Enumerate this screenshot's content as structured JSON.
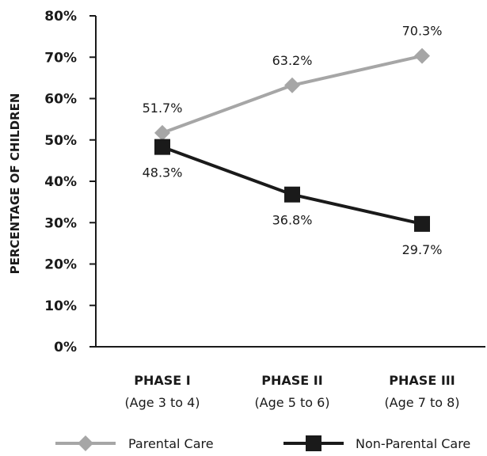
{
  "chart_data": {
    "type": "line",
    "title": "",
    "xlabel": "",
    "ylabel": "PERCENTAGE OF CHILDREN",
    "ylim": [
      0,
      80
    ],
    "yticks": [
      "0%",
      "10%",
      "20%",
      "30%",
      "40%",
      "50%",
      "60%",
      "70%",
      "80%"
    ],
    "categories": [
      {
        "name": "PHASE I",
        "sub": "(Age 3 to 4)"
      },
      {
        "name": "PHASE II",
        "sub": "(Age 5 to 6)"
      },
      {
        "name": "PHASE III",
        "sub": "(Age 7 to 8)"
      }
    ],
    "series": [
      {
        "name": "Parental Care",
        "values": [
          51.7,
          63.2,
          70.3
        ],
        "labels": [
          "51.7%",
          "63.2%",
          "70.3%"
        ],
        "color": "#a6a6a6",
        "marker": "diamond"
      },
      {
        "name": "Non-Parental Care",
        "values": [
          48.3,
          36.8,
          29.7
        ],
        "labels": [
          "48.3%",
          "36.8%",
          "29.7%"
        ],
        "color": "#1a1a1a",
        "marker": "square"
      }
    ],
    "grid": false,
    "legend_position": "bottom"
  }
}
